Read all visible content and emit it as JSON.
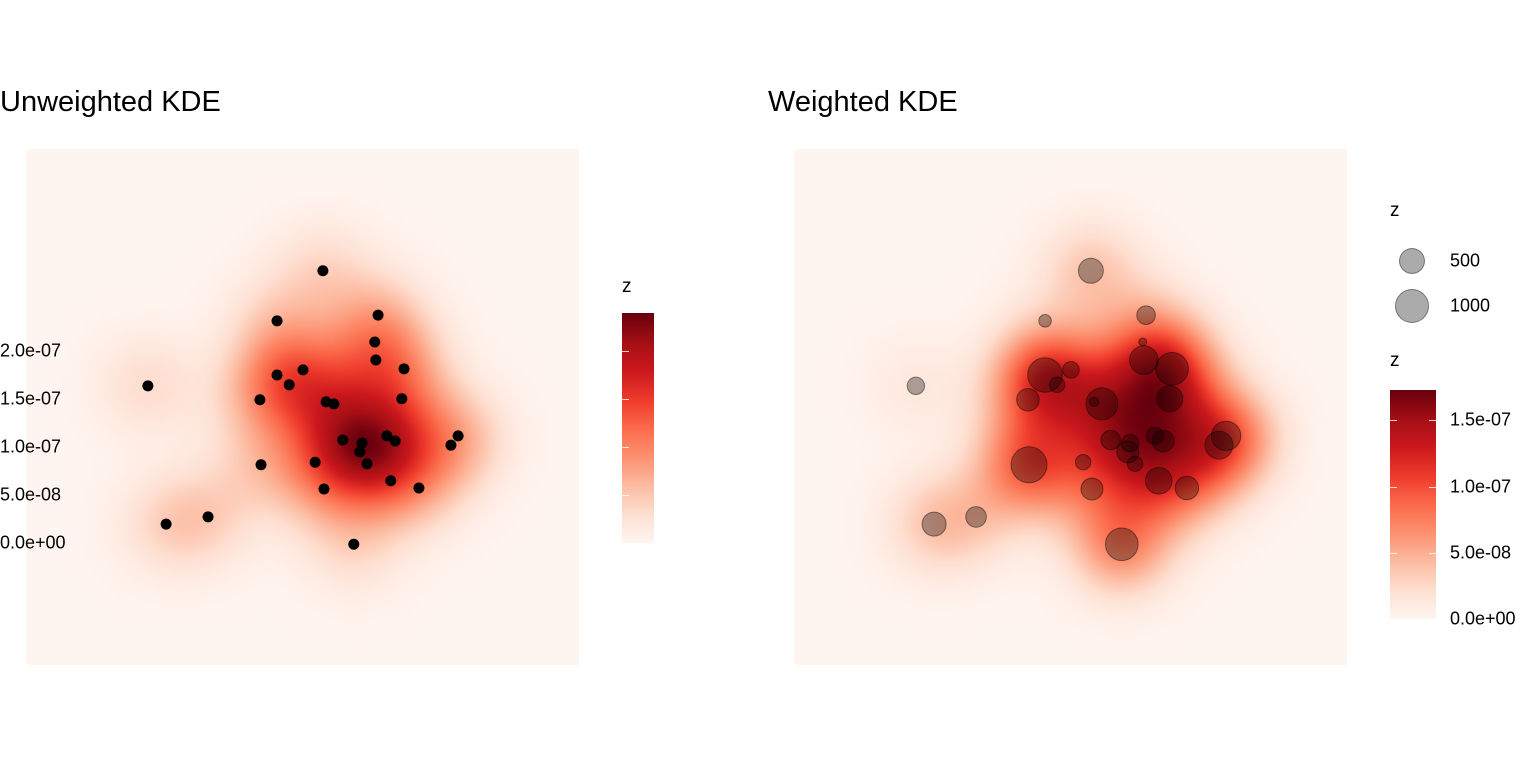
{
  "chart_data": [
    {
      "type": "heatmap",
      "title": "Unweighted KDE",
      "xlim": [
        0,
        100
      ],
      "ylim": [
        0,
        100
      ],
      "fill_legend": {
        "title": "z",
        "max": 2.4e-07,
        "ticks": [
          0,
          5e-08,
          1e-07,
          1.5e-07,
          2e-07
        ],
        "tick_labels": [
          "0.0e+00",
          "5.0e-08",
          "1.0e-07",
          "1.5e-07",
          "2.0e-07"
        ]
      },
      "points": [
        [
          53.6,
          76.4
        ],
        [
          45.3,
          66.7
        ],
        [
          63.6,
          67.8
        ],
        [
          63.0,
          62.6
        ],
        [
          63.2,
          59.1
        ],
        [
          68.3,
          57.4
        ],
        [
          45.3,
          56.2
        ],
        [
          50.0,
          57.2
        ],
        [
          47.5,
          54.3
        ],
        [
          21.9,
          54.1
        ],
        [
          42.2,
          51.4
        ],
        [
          54.2,
          51.0
        ],
        [
          55.6,
          50.6
        ],
        [
          67.9,
          51.6
        ],
        [
          57.2,
          43.6
        ],
        [
          60.7,
          43.0
        ],
        [
          65.2,
          44.4
        ],
        [
          66.7,
          43.4
        ],
        [
          78.1,
          44.4
        ],
        [
          76.8,
          42.6
        ],
        [
          60.3,
          41.3
        ],
        [
          52.2,
          39.3
        ],
        [
          61.6,
          39.0
        ],
        [
          42.4,
          38.8
        ],
        [
          65.9,
          35.7
        ],
        [
          71.0,
          34.3
        ],
        [
          53.8,
          34.1
        ],
        [
          32.8,
          28.7
        ],
        [
          25.2,
          27.3
        ],
        [
          59.2,
          23.4
        ]
      ]
    },
    {
      "type": "heatmap",
      "title": "Weighted KDE",
      "xlim": [
        0,
        100
      ],
      "ylim": [
        0,
        100
      ],
      "size_legend": {
        "title": "z",
        "values": [
          500,
          1000
        ],
        "labels": [
          "500",
          "1000"
        ]
      },
      "fill_legend": {
        "title": "z",
        "max": 1.73e-07,
        "ticks": [
          0,
          5e-08,
          1e-07,
          1.5e-07
        ],
        "tick_labels": [
          "0.0e+00",
          "5.0e-08",
          "1.0e-07",
          "1.5e-07"
        ]
      },
      "points": [
        [
          53.6,
          76.4,
          500
        ],
        [
          45.3,
          66.7,
          66
        ],
        [
          63.6,
          67.8,
          226
        ],
        [
          63.0,
          62.6,
          8
        ],
        [
          63.2,
          59.1,
          704
        ],
        [
          68.3,
          57.4,
          970
        ],
        [
          45.3,
          56.2,
          1117
        ],
        [
          50.0,
          57.2,
          163
        ],
        [
          47.5,
          54.3,
          128
        ],
        [
          21.9,
          54.1,
          186
        ],
        [
          42.2,
          51.4,
          385
        ],
        [
          54.2,
          51.0,
          20
        ],
        [
          55.6,
          50.6,
          926
        ],
        [
          67.9,
          51.6,
          554
        ],
        [
          57.2,
          43.6,
          254
        ],
        [
          60.7,
          43.0,
          186
        ],
        [
          65.2,
          44.4,
          186
        ],
        [
          66.7,
          43.4,
          358
        ],
        [
          78.1,
          44.4,
          751
        ],
        [
          76.8,
          42.6,
          667
        ],
        [
          60.3,
          41.3,
          358
        ],
        [
          52.2,
          39.3,
          128
        ],
        [
          61.6,
          39.0,
          128
        ],
        [
          42.4,
          38.8,
          1227
        ],
        [
          65.9,
          35.7,
          589
        ],
        [
          71.0,
          34.3,
          423
        ],
        [
          53.8,
          34.1,
          358
        ],
        [
          32.8,
          28.7,
          301
        ],
        [
          25.2,
          27.3,
          451
        ],
        [
          59.2,
          23.4,
          970
        ]
      ]
    }
  ]
}
